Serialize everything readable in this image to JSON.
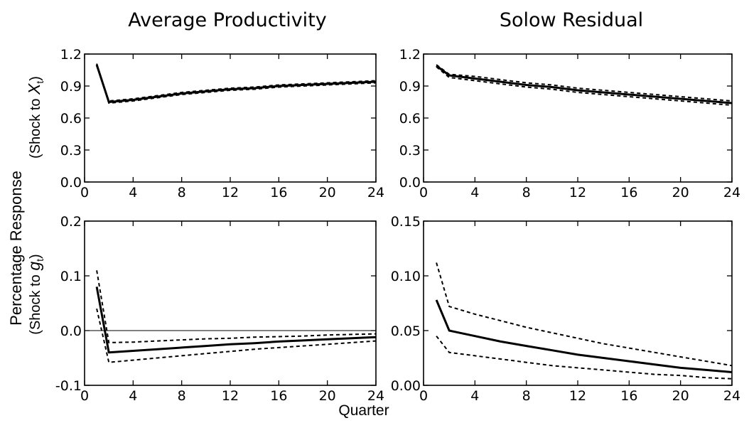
{
  "figure": {
    "column_titles": [
      "Average Productivity",
      "Solow Residual"
    ],
    "ylabel": "Percentage Response",
    "row_labels": [
      {
        "prefix": "(Shock to ",
        "var": "X",
        "sub": "t",
        "suffix": ")"
      },
      {
        "prefix": "(Shock to ",
        "var": "g",
        "sub": "t",
        "suffix": ")"
      }
    ],
    "xlabel": "Quarter"
  },
  "chart_data": [
    {
      "id": "avg-prod-x",
      "type": "line",
      "title": "",
      "xlim": [
        0,
        24
      ],
      "ylim": [
        0,
        1.2
      ],
      "xticks": [
        0,
        4,
        8,
        12,
        16,
        20,
        24
      ],
      "xtick_labels": [
        "0",
        "4",
        "8",
        "12",
        "16",
        "20",
        "24"
      ],
      "yticks": [
        0,
        0.3,
        0.6,
        0.9,
        1.2
      ],
      "ytick_labels": [
        "0.0",
        "0.3",
        "0.6",
        "0.9",
        "1.2"
      ],
      "zero_line": false,
      "x": [
        1,
        2,
        4,
        6,
        8,
        10,
        12,
        14,
        16,
        18,
        20,
        22,
        24
      ],
      "series": [
        {
          "style": "dashed",
          "values": [
            1.09,
            0.76,
            0.78,
            0.81,
            0.84,
            0.86,
            0.88,
            0.89,
            0.91,
            0.92,
            0.93,
            0.94,
            0.95
          ]
        },
        {
          "style": "solid",
          "values": [
            1.1,
            0.75,
            0.77,
            0.8,
            0.83,
            0.85,
            0.87,
            0.88,
            0.9,
            0.91,
            0.92,
            0.93,
            0.94
          ]
        },
        {
          "style": "dashed",
          "values": [
            1.11,
            0.74,
            0.76,
            0.79,
            0.82,
            0.84,
            0.86,
            0.87,
            0.89,
            0.9,
            0.91,
            0.92,
            0.93
          ]
        }
      ]
    },
    {
      "id": "solow-x",
      "type": "line",
      "title": "",
      "xlim": [
        0,
        24
      ],
      "ylim": [
        0,
        1.2
      ],
      "xticks": [
        0,
        4,
        8,
        12,
        16,
        20,
        24
      ],
      "xtick_labels": [
        "0",
        "4",
        "8",
        "12",
        "16",
        "20",
        "24"
      ],
      "yticks": [
        0,
        0.3,
        0.6,
        0.9,
        1.2
      ],
      "ytick_labels": [
        "0.0",
        "0.3",
        "0.6",
        "0.9",
        "1.2"
      ],
      "zero_line": false,
      "x": [
        1,
        2,
        4,
        6,
        8,
        10,
        12,
        14,
        16,
        18,
        20,
        22,
        24
      ],
      "series": [
        {
          "style": "dashed",
          "values": [
            1.1,
            1.01,
            0.99,
            0.96,
            0.93,
            0.91,
            0.88,
            0.86,
            0.84,
            0.82,
            0.8,
            0.78,
            0.76
          ]
        },
        {
          "style": "solid",
          "values": [
            1.09,
            1.0,
            0.97,
            0.94,
            0.91,
            0.89,
            0.86,
            0.84,
            0.82,
            0.8,
            0.78,
            0.76,
            0.74
          ]
        },
        {
          "style": "dashed",
          "values": [
            1.08,
            0.98,
            0.95,
            0.92,
            0.89,
            0.87,
            0.84,
            0.82,
            0.8,
            0.78,
            0.76,
            0.74,
            0.72
          ]
        }
      ]
    },
    {
      "id": "avg-prod-g",
      "type": "line",
      "title": "",
      "xlim": [
        0,
        24
      ],
      "ylim": [
        -0.1,
        0.2
      ],
      "xticks": [
        0,
        4,
        8,
        12,
        16,
        20,
        24
      ],
      "xtick_labels": [
        "0",
        "4",
        "8",
        "12",
        "16",
        "20",
        "24"
      ],
      "yticks": [
        -0.1,
        0,
        0.1,
        0.2
      ],
      "ytick_labels": [
        "-0.1",
        "0.0",
        "0.1",
        "0.2"
      ],
      "zero_line": true,
      "x": [
        1,
        2,
        4,
        6,
        8,
        10,
        12,
        14,
        16,
        18,
        20,
        22,
        24
      ],
      "series": [
        {
          "style": "dashed",
          "values": [
            0.11,
            -0.022,
            -0.021,
            -0.019,
            -0.017,
            -0.015,
            -0.014,
            -0.012,
            -0.011,
            -0.01,
            -0.008,
            -0.007,
            -0.006
          ]
        },
        {
          "style": "solid",
          "values": [
            0.08,
            -0.04,
            -0.037,
            -0.034,
            -0.031,
            -0.028,
            -0.025,
            -0.023,
            -0.02,
            -0.018,
            -0.016,
            -0.014,
            -0.012
          ]
        },
        {
          "style": "dashed",
          "values": [
            0.04,
            -0.058,
            -0.054,
            -0.05,
            -0.046,
            -0.042,
            -0.038,
            -0.034,
            -0.031,
            -0.028,
            -0.025,
            -0.022,
            -0.019
          ]
        }
      ]
    },
    {
      "id": "solow-g",
      "type": "line",
      "title": "",
      "xlim": [
        0,
        24
      ],
      "ylim": [
        0,
        0.15
      ],
      "xticks": [
        0,
        4,
        8,
        12,
        16,
        20,
        24
      ],
      "xtick_labels": [
        "0",
        "4",
        "8",
        "12",
        "16",
        "20",
        "24"
      ],
      "yticks": [
        0,
        0.05,
        0.1,
        0.15
      ],
      "ytick_labels": [
        "0.00",
        "0.05",
        "0.10",
        "0.15"
      ],
      "zero_line": false,
      "x": [
        1,
        2,
        4,
        6,
        8,
        10,
        12,
        14,
        16,
        18,
        20,
        22,
        24
      ],
      "series": [
        {
          "style": "dashed",
          "values": [
            0.112,
            0.072,
            0.065,
            0.059,
            0.053,
            0.048,
            0.043,
            0.038,
            0.034,
            0.03,
            0.026,
            0.022,
            0.018
          ]
        },
        {
          "style": "solid",
          "values": [
            0.078,
            0.05,
            0.045,
            0.04,
            0.036,
            0.032,
            0.028,
            0.025,
            0.022,
            0.019,
            0.016,
            0.014,
            0.012
          ]
        },
        {
          "style": "dashed",
          "values": [
            0.045,
            0.03,
            0.027,
            0.024,
            0.021,
            0.018,
            0.016,
            0.014,
            0.012,
            0.01,
            0.009,
            0.007,
            0.006
          ]
        }
      ]
    }
  ]
}
